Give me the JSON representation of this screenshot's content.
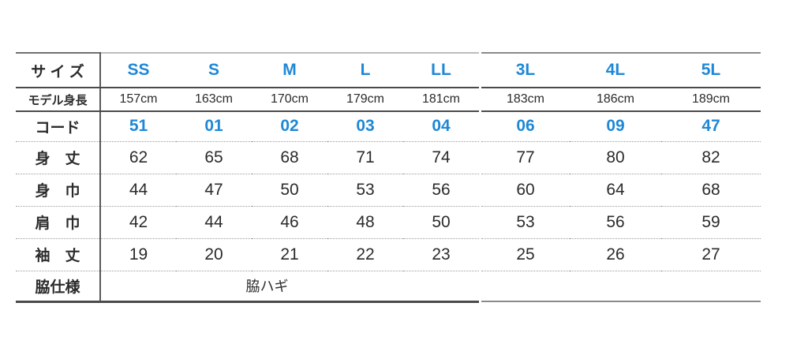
{
  "colors": {
    "accent_blue": "#1f88d6",
    "text_dark": "#2e2e2e",
    "solid_line": "#4a4a4a",
    "dotted_line": "#9c9c9c"
  },
  "size_chart": {
    "row_labels": {
      "size": "サ イ ズ",
      "model_height": "モデル身長",
      "code": "コード",
      "body_length": "身　丈",
      "body_width": "身　巾",
      "shoulder_width": "肩　巾",
      "sleeve_length": "袖　丈",
      "side_spec": "脇仕様"
    },
    "sizes": [
      "SS",
      "S",
      "M",
      "L",
      "LL",
      "3L",
      "4L",
      "5L"
    ],
    "model_heights": [
      "157cm",
      "163cm",
      "170cm",
      "179cm",
      "181cm",
      "183cm",
      "186cm",
      "189cm"
    ],
    "codes": [
      "51",
      "01",
      "02",
      "03",
      "04",
      "06",
      "09",
      "47"
    ],
    "measurements": {
      "body_length": [
        "62",
        "65",
        "68",
        "71",
        "74",
        "77",
        "80",
        "82"
      ],
      "body_width": [
        "44",
        "47",
        "50",
        "53",
        "56",
        "60",
        "64",
        "68"
      ],
      "shoulder_width": [
        "42",
        "44",
        "46",
        "48",
        "50",
        "53",
        "56",
        "59"
      ],
      "sleeve_length": [
        "19",
        "20",
        "21",
        "22",
        "23",
        "25",
        "26",
        "27"
      ]
    },
    "side_spec_value": "脇ハギ"
  }
}
